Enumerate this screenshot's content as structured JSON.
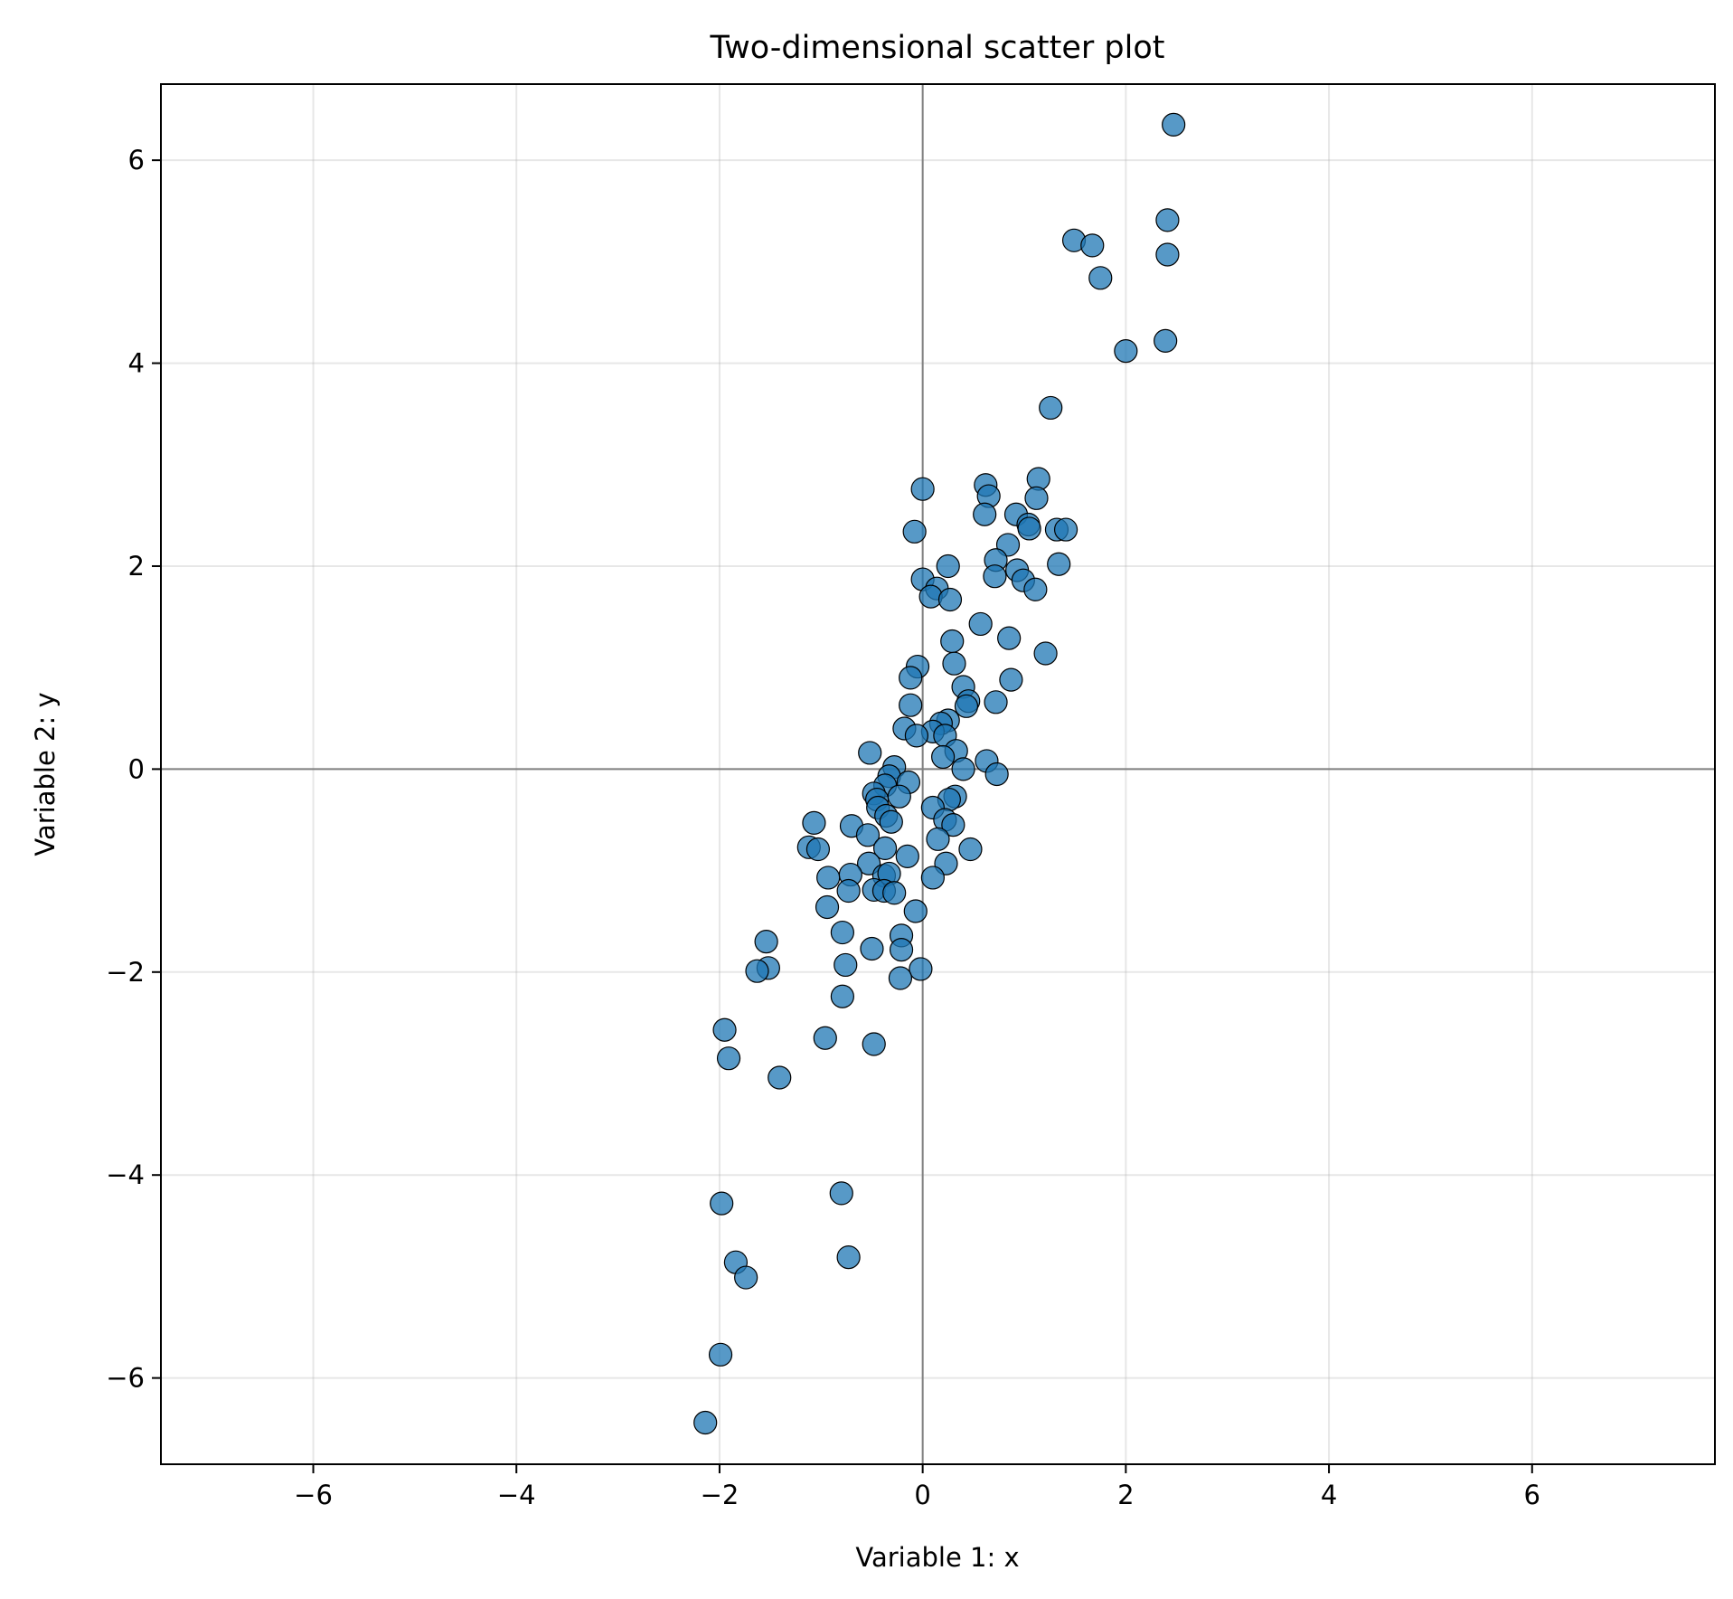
{
  "chart_data": {
    "type": "scatter",
    "title": "Two-dimensional scatter plot",
    "xlabel": "Variable 1: x",
    "ylabel": "Variable 2: y",
    "xlim": [
      -7.5,
      7.8
    ],
    "ylim": [
      -6.85,
      6.75
    ],
    "xticks": [
      -6,
      -4,
      -2,
      0,
      2,
      4,
      6
    ],
    "yticks": [
      -6,
      -4,
      -2,
      0,
      2,
      4,
      6
    ],
    "grid": true,
    "reference_lines": {
      "x": 0,
      "y": 0
    },
    "marker_color": "#1f77b4",
    "marker_edge_color": "#000000",
    "points": [
      [
        2.47,
        6.35
      ],
      [
        2.41,
        5.41
      ],
      [
        1.49,
        5.21
      ],
      [
        1.67,
        5.16
      ],
      [
        2.41,
        5.07
      ],
      [
        1.75,
        4.84
      ],
      [
        2.0,
        4.12
      ],
      [
        2.39,
        4.22
      ],
      [
        1.26,
        3.56
      ],
      [
        0.0,
        2.76
      ],
      [
        0.62,
        2.8
      ],
      [
        1.14,
        2.86
      ],
      [
        0.65,
        2.69
      ],
      [
        1.12,
        2.67
      ],
      [
        0.61,
        2.51
      ],
      [
        0.92,
        2.51
      ],
      [
        1.04,
        2.41
      ],
      [
        1.05,
        2.37
      ],
      [
        1.32,
        2.36
      ],
      [
        1.41,
        2.36
      ],
      [
        -0.08,
        2.34
      ],
      [
        0.84,
        2.21
      ],
      [
        0.72,
        2.06
      ],
      [
        0.25,
        2.0
      ],
      [
        1.34,
        2.02
      ],
      [
        0.93,
        1.96
      ],
      [
        0.71,
        1.9
      ],
      [
        0.99,
        1.86
      ],
      [
        0.0,
        1.87
      ],
      [
        0.14,
        1.78
      ],
      [
        1.11,
        1.77
      ],
      [
        0.08,
        1.7
      ],
      [
        0.27,
        1.67
      ],
      [
        0.57,
        1.43
      ],
      [
        0.85,
        1.29
      ],
      [
        0.29,
        1.26
      ],
      [
        1.21,
        1.14
      ],
      [
        0.31,
        1.04
      ],
      [
        -0.05,
        1.01
      ],
      [
        -0.12,
        0.9
      ],
      [
        0.87,
        0.88
      ],
      [
        0.4,
        0.81
      ],
      [
        0.45,
        0.67
      ],
      [
        0.43,
        0.62
      ],
      [
        0.72,
        0.66
      ],
      [
        -0.12,
        0.63
      ],
      [
        0.25,
        0.48
      ],
      [
        0.18,
        0.45
      ],
      [
        -0.18,
        0.4
      ],
      [
        0.1,
        0.37
      ],
      [
        0.22,
        0.33
      ],
      [
        -0.06,
        0.33
      ],
      [
        0.33,
        0.18
      ],
      [
        -0.52,
        0.16
      ],
      [
        0.2,
        0.12
      ],
      [
        0.63,
        0.08
      ],
      [
        -0.28,
        0.02
      ],
      [
        0.4,
        0.0
      ],
      [
        0.73,
        -0.05
      ],
      [
        -0.33,
        -0.07
      ],
      [
        -0.14,
        -0.13
      ],
      [
        -0.37,
        -0.16
      ],
      [
        -0.48,
        -0.24
      ],
      [
        -0.23,
        -0.27
      ],
      [
        -0.45,
        -0.3
      ],
      [
        0.32,
        -0.27
      ],
      [
        0.26,
        -0.3
      ],
      [
        0.1,
        -0.38
      ],
      [
        -0.44,
        -0.38
      ],
      [
        -0.36,
        -0.46
      ],
      [
        -0.31,
        -0.52
      ],
      [
        0.22,
        -0.5
      ],
      [
        0.3,
        -0.55
      ],
      [
        -1.07,
        -0.53
      ],
      [
        -0.7,
        -0.56
      ],
      [
        -0.54,
        -0.65
      ],
      [
        0.15,
        -0.69
      ],
      [
        -1.12,
        -0.77
      ],
      [
        -1.03,
        -0.79
      ],
      [
        -0.37,
        -0.78
      ],
      [
        0.47,
        -0.79
      ],
      [
        -0.15,
        -0.86
      ],
      [
        -0.53,
        -0.93
      ],
      [
        0.23,
        -0.93
      ],
      [
        -0.71,
        -1.04
      ],
      [
        -0.38,
        -1.05
      ],
      [
        -0.33,
        -1.03
      ],
      [
        -0.93,
        -1.07
      ],
      [
        0.1,
        -1.07
      ],
      [
        -0.73,
        -1.2
      ],
      [
        -0.48,
        -1.19
      ],
      [
        -0.38,
        -1.2
      ],
      [
        -0.28,
        -1.22
      ],
      [
        -0.94,
        -1.36
      ],
      [
        -0.07,
        -1.4
      ],
      [
        -0.79,
        -1.61
      ],
      [
        -0.21,
        -1.64
      ],
      [
        -1.54,
        -1.7
      ],
      [
        -0.5,
        -1.77
      ],
      [
        -0.21,
        -1.78
      ],
      [
        -0.76,
        -1.93
      ],
      [
        -1.52,
        -1.96
      ],
      [
        -1.63,
        -1.99
      ],
      [
        -0.02,
        -1.97
      ],
      [
        -0.22,
        -2.06
      ],
      [
        -0.79,
        -2.24
      ],
      [
        -1.95,
        -2.57
      ],
      [
        -0.96,
        -2.65
      ],
      [
        -0.48,
        -2.71
      ],
      [
        -1.91,
        -2.85
      ],
      [
        -1.41,
        -3.04
      ],
      [
        -0.8,
        -4.18
      ],
      [
        -1.98,
        -4.28
      ],
      [
        -1.84,
        -4.86
      ],
      [
        -0.73,
        -4.81
      ],
      [
        -1.74,
        -5.01
      ],
      [
        -1.99,
        -5.77
      ],
      [
        -2.14,
        -6.44
      ]
    ]
  }
}
